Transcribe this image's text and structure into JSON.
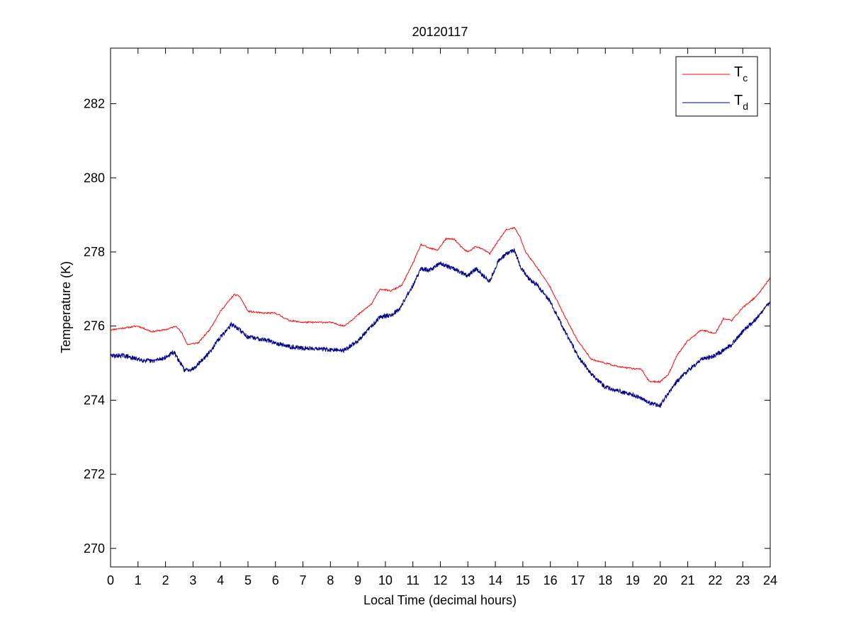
{
  "chart_data": {
    "type": "line",
    "title": "20120117",
    "xlabel": "Local Time (decimal hours)",
    "ylabel": "Temperature (K)",
    "xlim": [
      0,
      24
    ],
    "ylim": [
      269.5,
      283.5
    ],
    "x_ticks": [
      0,
      1,
      2,
      3,
      4,
      5,
      6,
      7,
      8,
      9,
      10,
      11,
      12,
      13,
      14,
      15,
      16,
      17,
      18,
      19,
      20,
      21,
      22,
      23,
      24
    ],
    "y_ticks": [
      270,
      272,
      274,
      276,
      278,
      280,
      282
    ],
    "grid": false,
    "legend_position": "top-right",
    "series": [
      {
        "name": "T",
        "name_subscript": "c",
        "color": "#ff0000",
        "points": [
          [
            0,
            275.9
          ],
          [
            0.5,
            275.95
          ],
          [
            1,
            276.0
          ],
          [
            1.5,
            275.85
          ],
          [
            2,
            275.9
          ],
          [
            2.4,
            276.0
          ],
          [
            2.6,
            275.8
          ],
          [
            2.8,
            275.5
          ],
          [
            3.2,
            275.55
          ],
          [
            3.6,
            275.9
          ],
          [
            4,
            276.4
          ],
          [
            4.5,
            276.85
          ],
          [
            4.7,
            276.8
          ],
          [
            5,
            276.4
          ],
          [
            5.5,
            276.35
          ],
          [
            6,
            276.35
          ],
          [
            6.5,
            276.15
          ],
          [
            7,
            276.1
          ],
          [
            7.5,
            276.1
          ],
          [
            8,
            276.1
          ],
          [
            8.5,
            276.0
          ],
          [
            9,
            276.3
          ],
          [
            9.5,
            276.6
          ],
          [
            9.8,
            277.0
          ],
          [
            10.2,
            276.95
          ],
          [
            10.6,
            277.1
          ],
          [
            11,
            277.7
          ],
          [
            11.3,
            278.2
          ],
          [
            11.6,
            278.1
          ],
          [
            11.9,
            278.05
          ],
          [
            12.2,
            278.35
          ],
          [
            12.5,
            278.35
          ],
          [
            12.8,
            278.1
          ],
          [
            13,
            278.0
          ],
          [
            13.3,
            278.15
          ],
          [
            13.6,
            278.05
          ],
          [
            13.8,
            277.95
          ],
          [
            14.1,
            278.3
          ],
          [
            14.4,
            278.6
          ],
          [
            14.7,
            278.65
          ],
          [
            14.9,
            278.4
          ],
          [
            15.1,
            278.0
          ],
          [
            15.5,
            277.6
          ],
          [
            16,
            277.05
          ],
          [
            16.5,
            276.3
          ],
          [
            17,
            275.6
          ],
          [
            17.5,
            275.1
          ],
          [
            18,
            275.0
          ],
          [
            18.5,
            274.9
          ],
          [
            19,
            274.85
          ],
          [
            19.3,
            274.85
          ],
          [
            19.6,
            274.5
          ],
          [
            20,
            274.5
          ],
          [
            20.3,
            274.7
          ],
          [
            20.6,
            275.2
          ],
          [
            21,
            275.6
          ],
          [
            21.5,
            275.9
          ],
          [
            22,
            275.8
          ],
          [
            22.3,
            276.2
          ],
          [
            22.6,
            276.15
          ],
          [
            23,
            276.5
          ],
          [
            23.5,
            276.8
          ],
          [
            24,
            277.3
          ]
        ]
      },
      {
        "name": "T",
        "name_subscript": "d",
        "color": "#00008b",
        "points": [
          [
            0,
            275.2
          ],
          [
            0.5,
            275.2
          ],
          [
            1,
            275.1
          ],
          [
            1.5,
            275.05
          ],
          [
            2,
            275.15
          ],
          [
            2.3,
            275.3
          ],
          [
            2.5,
            275.05
          ],
          [
            2.7,
            274.8
          ],
          [
            3,
            274.85
          ],
          [
            3.5,
            275.2
          ],
          [
            4,
            275.7
          ],
          [
            4.4,
            276.05
          ],
          [
            4.7,
            275.9
          ],
          [
            5,
            275.7
          ],
          [
            5.5,
            275.65
          ],
          [
            6,
            275.55
          ],
          [
            6.5,
            275.45
          ],
          [
            7,
            275.4
          ],
          [
            7.5,
            275.4
          ],
          [
            8,
            275.35
          ],
          [
            8.5,
            275.35
          ],
          [
            9,
            275.6
          ],
          [
            9.5,
            276.0
          ],
          [
            9.8,
            276.25
          ],
          [
            10.2,
            276.3
          ],
          [
            10.5,
            276.45
          ],
          [
            11,
            277.1
          ],
          [
            11.3,
            277.55
          ],
          [
            11.6,
            277.5
          ],
          [
            12,
            277.7
          ],
          [
            12.3,
            277.6
          ],
          [
            12.6,
            277.5
          ],
          [
            13,
            277.35
          ],
          [
            13.3,
            277.55
          ],
          [
            13.5,
            277.4
          ],
          [
            13.8,
            277.2
          ],
          [
            14.1,
            277.75
          ],
          [
            14.4,
            277.95
          ],
          [
            14.7,
            278.05
          ],
          [
            14.9,
            277.6
          ],
          [
            15.2,
            277.3
          ],
          [
            15.6,
            277.05
          ],
          [
            16,
            276.65
          ],
          [
            16.5,
            275.9
          ],
          [
            17,
            275.2
          ],
          [
            17.5,
            274.7
          ],
          [
            18,
            274.35
          ],
          [
            18.5,
            274.25
          ],
          [
            19,
            274.15
          ],
          [
            19.4,
            274.0
          ],
          [
            19.7,
            273.9
          ],
          [
            20,
            273.85
          ],
          [
            20.3,
            274.2
          ],
          [
            20.6,
            274.5
          ],
          [
            21,
            274.8
          ],
          [
            21.5,
            275.1
          ],
          [
            22,
            275.2
          ],
          [
            22.3,
            275.35
          ],
          [
            22.6,
            275.5
          ],
          [
            23,
            275.85
          ],
          [
            23.5,
            276.2
          ],
          [
            24,
            276.65
          ]
        ]
      }
    ]
  }
}
